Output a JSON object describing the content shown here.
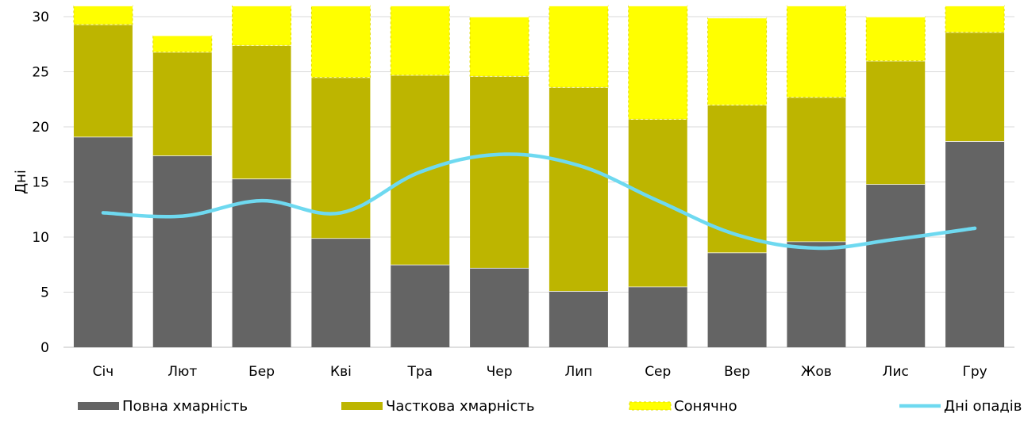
{
  "chart_data": {
    "type": "bar",
    "stacked": true,
    "ylabel": "Дні",
    "ylim": [
      0,
      30
    ],
    "yticks": [
      0,
      5,
      10,
      15,
      20,
      25,
      30
    ],
    "grid": true,
    "legend_position": "bottom",
    "categories": [
      "Січ",
      "Лют",
      "Бер",
      "Кві",
      "Тра",
      "Чер",
      "Лип",
      "Сер",
      "Вер",
      "Жов",
      "Лис",
      "Гру"
    ],
    "series": [
      {
        "name": "Повна хмарність",
        "type": "bar",
        "color": "#646464",
        "values": [
          19.1,
          17.4,
          15.3,
          9.9,
          7.5,
          7.2,
          5.1,
          5.5,
          8.6,
          9.6,
          14.8,
          18.7
        ]
      },
      {
        "name": "Часткова хмарність",
        "type": "bar",
        "color": "#bdb500",
        "values": [
          10.2,
          9.4,
          12.1,
          14.6,
          17.2,
          17.4,
          18.5,
          15.2,
          13.4,
          13.1,
          11.2,
          9.9
        ]
      },
      {
        "name": "Сонячно",
        "type": "bar",
        "color": "#ffff00",
        "values": [
          1.7,
          1.5,
          3.6,
          6.5,
          6.3,
          5.4,
          7.4,
          10.3,
          7.9,
          8.3,
          4.0,
          2.4
        ]
      },
      {
        "name": "Дні опадів",
        "type": "line",
        "color": "#6ed9f0",
        "values": [
          12.2,
          11.9,
          13.3,
          12.2,
          15.9,
          17.5,
          16.5,
          13.3,
          10.2,
          9.0,
          9.8,
          10.8
        ]
      }
    ]
  }
}
